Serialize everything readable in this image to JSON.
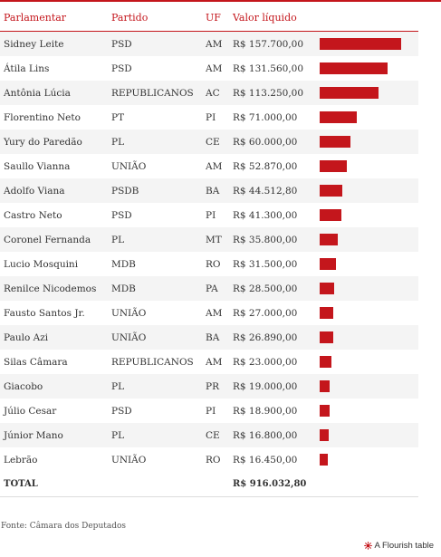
{
  "headers": {
    "name": "Parlamentar",
    "party": "Partido",
    "uf": "UF",
    "value": "Valor líquido"
  },
  "rows": [
    {
      "name": "Sidney Leite",
      "party": "PSD",
      "uf": "AM",
      "value": "R$ 157.700,00"
    },
    {
      "name": "Átila Lins",
      "party": "PSD",
      "uf": "AM",
      "value": "R$ 131.560,00"
    },
    {
      "name": "Antônia Lúcia",
      "party": "REPUBLICANOS",
      "uf": "AC",
      "value": "R$ 113.250,00"
    },
    {
      "name": "Florentino Neto",
      "party": "PT",
      "uf": "PI",
      "value": "R$ 71.000,00"
    },
    {
      "name": "Yury do Paredão",
      "party": "PL",
      "uf": "CE",
      "value": "R$ 60.000,00"
    },
    {
      "name": "Saullo Vianna",
      "party": "UNIÃO",
      "uf": "AM",
      "value": "R$ 52.870,00"
    },
    {
      "name": "Adolfo Viana",
      "party": "PSDB",
      "uf": "BA",
      "value": "R$ 44.512,80"
    },
    {
      "name": "Castro Neto",
      "party": "PSD",
      "uf": "PI",
      "value": "R$ 41.300,00"
    },
    {
      "name": "Coronel Fernanda",
      "party": "PL",
      "uf": "MT",
      "value": "R$ 35.800,00"
    },
    {
      "name": "Lucio Mosquini",
      "party": "MDB",
      "uf": "RO",
      "value": "R$ 31.500,00"
    },
    {
      "name": "Renilce Nicodemos",
      "party": "MDB",
      "uf": "PA",
      "value": "R$ 28.500,00"
    },
    {
      "name": "Fausto Santos Jr.",
      "party": "UNIÃO",
      "uf": "AM",
      "value": "R$ 27.000,00"
    },
    {
      "name": "Paulo Azi",
      "party": "UNIÃO",
      "uf": "BA",
      "value": "R$ 26.890,00"
    },
    {
      "name": "Silas Câmara",
      "party": "REPUBLICANOS",
      "uf": "AM",
      "value": "R$ 23.000,00"
    },
    {
      "name": "Giacobo",
      "party": "PL",
      "uf": "PR",
      "value": "R$ 19.000,00"
    },
    {
      "name": "Júlio Cesar",
      "party": "PSD",
      "uf": "PI",
      "value": "R$ 18.900,00"
    },
    {
      "name": "Júnior Mano",
      "party": "PL",
      "uf": "CE",
      "value": "R$ 16.800,00"
    },
    {
      "name": "Lebrão",
      "party": "UNIÃO",
      "uf": "RO",
      "value": "R$ 16.450,00"
    }
  ],
  "total": {
    "label": "TOTAL",
    "value": "R$ 916.032,80"
  },
  "footer": {
    "source": "Fonte: Câmara dos Deputados",
    "credit": "A Flourish table"
  },
  "colors": {
    "accent": "#c4161c",
    "stripe": "#f4f4f4"
  },
  "chart_data": {
    "type": "table",
    "columns": [
      "Parlamentar",
      "Partido",
      "UF",
      "Valor líquido"
    ],
    "bar_column": "Valor líquido",
    "bar_scale_max": 157700,
    "values": [
      157700.0,
      131560.0,
      113250.0,
      71000.0,
      60000.0,
      52870.0,
      44512.8,
      41300.0,
      35800.0,
      31500.0,
      28500.0,
      27000.0,
      26890.0,
      23000.0,
      19000.0,
      18900.0,
      16800.0,
      16450.0
    ],
    "total": 916032.8
  }
}
